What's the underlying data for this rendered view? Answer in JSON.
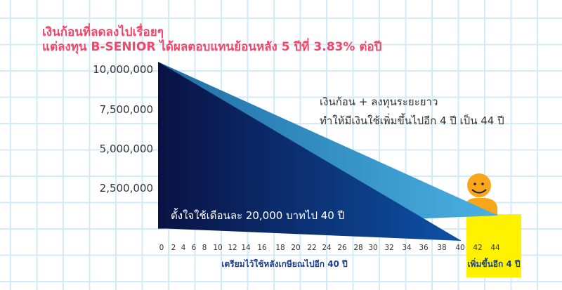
{
  "title_lines": [
    "เงินก้อนที่ลดลงไปเรื่อยๆ",
    "แต่ลงทุน B-SENIOR ได้ผลตอบแทนย้อนหลัง 5 ปีที่ 3.83% ต่อปี"
  ],
  "chart_data": {
    "type": "area",
    "title": "เงินก้อนที่ลดลงไปเรื่อยๆ แต่ลงทุน B-SENIOR ได้ผลตอบแทนย้อนหลัง 5 ปีที่ 3.83% ต่อปี",
    "y_tick_labels": [
      "10,000,000",
      "7,500,000",
      "5,000,000",
      "2,500,000"
    ],
    "x_tick_labels": [
      "0",
      "2",
      "4",
      "6",
      "8",
      "10",
      "12",
      "14",
      "16",
      "18",
      "20",
      "22",
      "24",
      "26",
      "28",
      "30",
      "32",
      "34",
      "36",
      "38",
      "40",
      "42",
      "44"
    ],
    "ylim": [
      0,
      10000000
    ],
    "series": [
      {
        "points": [
          [
            0,
            10000000
          ],
          [
            44,
            0
          ]
        ],
        "color": "#3ea4d8"
      },
      {
        "points": [
          [
            0,
            10000000
          ],
          [
            40,
            0
          ]
        ],
        "color": "#0b2f7a"
      }
    ],
    "annotations": {
      "invest_line1": "เงินก้อน + ลงทุนระยะยาว",
      "invest_line2": "ทำให้มีเงินใช้เพิ่มขึ้นไปอีก 4 ปี เป็น 44 ปี",
      "spend": "ตั้งใจใช้เดือนละ 20,000 บาทไป 40 ปี",
      "x_caption_main": "เตรียมไว้ใช้หลังเกษียณไปอีก 40 ปี",
      "x_caption_extra": "เพิ่มขึ้นอีก 4 ปี"
    },
    "grid": true,
    "colors": {
      "title": "#f0476a",
      "highlight": "#fff200",
      "person": "#f9a61a",
      "caption": "#1c3f94"
    }
  }
}
